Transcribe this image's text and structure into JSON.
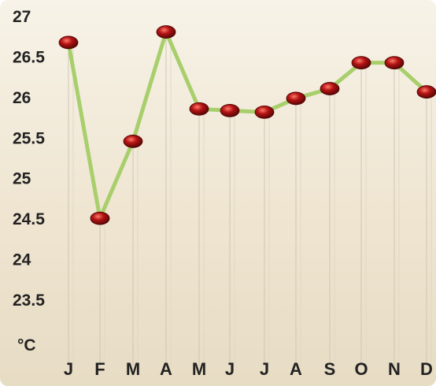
{
  "chart_data": {
    "type": "line",
    "categories": [
      "J",
      "F",
      "M",
      "A",
      "M",
      "J",
      "J",
      "A",
      "S",
      "O",
      "N",
      "D"
    ],
    "series": [
      {
        "values": [
          26.67,
          24.5,
          25.45,
          26.8,
          25.85,
          25.83,
          25.81,
          25.98,
          26.1,
          26.42,
          26.42,
          26.06
        ]
      }
    ],
    "y_ticks": [
      "27",
      "26.5",
      "26",
      "25.5",
      "25",
      "24.5",
      "24",
      "23.5"
    ],
    "unit_label": "°C",
    "ylim": [
      23.5,
      27
    ],
    "grid": "vertical",
    "line_color": "#a8cf6c",
    "marker_color": "#b31313",
    "background_color": "#f2ead8"
  }
}
